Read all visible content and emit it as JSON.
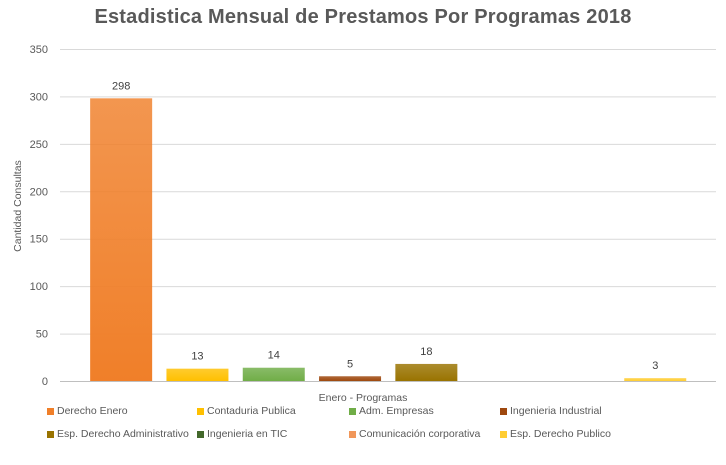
{
  "chart_data": {
    "type": "bar",
    "title": "Estadistica Mensual de Prestamos Por Programas 2018",
    "xlabel": "Enero - Programas",
    "ylabel": "Cantidad Consultas",
    "ylim": [
      0,
      350
    ],
    "yticks": [
      0,
      50,
      100,
      150,
      200,
      250,
      300,
      350
    ],
    "grid": true,
    "legend_position": "bottom",
    "series": [
      {
        "name": "Derecho Enero",
        "value": 298,
        "color": "#F07F29",
        "label": "298"
      },
      {
        "name": "Contaduria Publica",
        "value": 13,
        "color": "#FFC000",
        "label": "13"
      },
      {
        "name": "Adm. Empresas",
        "value": 14,
        "color": "#70AD47",
        "label": "14"
      },
      {
        "name": "Ingenieria Industrial",
        "value": 5,
        "color": "#9E480E",
        "label": "5"
      },
      {
        "name": "Esp. Derecho Administrativo",
        "value": 18,
        "color": "#997300",
        "label": "18"
      },
      {
        "name": "Ingenieria en TIC",
        "value": 0,
        "color": "#43682B",
        "label": ""
      },
      {
        "name": "Comunicación corporativa",
        "value": 0,
        "color": "#F1975A",
        "label": ""
      },
      {
        "name": "Esp. Derecho Publico",
        "value": 3,
        "color": "#FFCD33",
        "label": "3"
      }
    ]
  }
}
